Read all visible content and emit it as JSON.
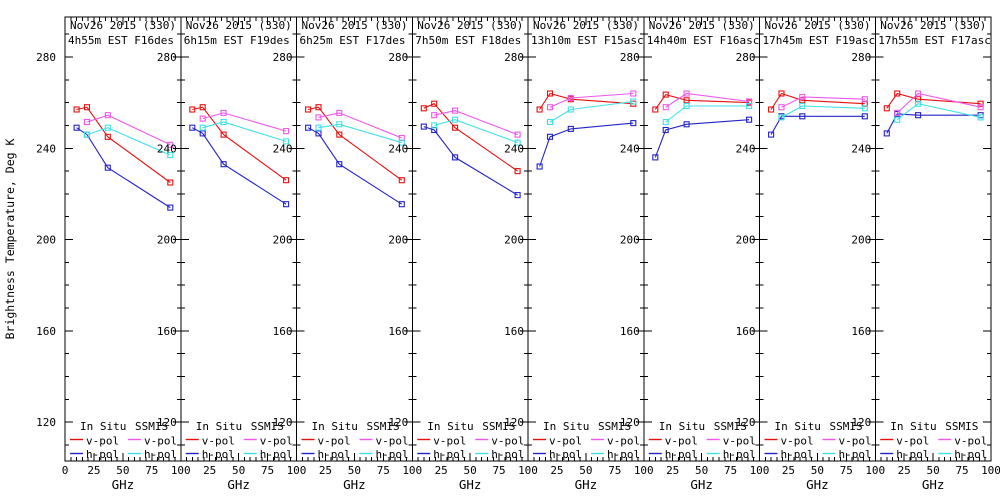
{
  "figure": {
    "y_axis_title": "Brightness Temperature, Deg K",
    "x_axis_title": "GHz",
    "y_ticks": [
      120,
      160,
      200,
      240,
      280
    ],
    "x_ticks": [
      0,
      25,
      50,
      75,
      100
    ],
    "y_minor_step": 10,
    "x_minor_step": 5,
    "xlim": [
      0,
      100
    ],
    "ylim_display": [
      103,
      297.5
    ],
    "grid": "off",
    "legend_position": "bottom-inside-each-panel",
    "colors": {
      "insitu_v": "#e80f0f",
      "insitu_h": "#2323c8",
      "ssmis_v": "#ee58ee",
      "ssmis_h": "#3fe0e8",
      "frame": "#000000",
      "background": "#ffffff"
    },
    "legend": {
      "groups": [
        {
          "title": "In Situ",
          "entries": [
            {
              "label": "v-pol",
              "key": "insitu_v"
            },
            {
              "label": "h-pol",
              "key": "insitu_h"
            }
          ]
        },
        {
          "title": "SSMIS",
          "entries": [
            {
              "label": "v-pol",
              "key": "ssmis_v"
            },
            {
              "label": "h-pol",
              "key": "ssmis_h"
            }
          ]
        }
      ]
    }
  },
  "chart_data": [
    {
      "type": "line",
      "title": [
        "Nov26 2015 (330)",
        "4h55m EST F16des"
      ],
      "xlabel": "GHz",
      "series": [
        {
          "name": "In Situ v-pol",
          "key": "insitu_v",
          "x": [
            10,
            19,
            37,
            91
          ],
          "y": [
            257,
            258,
            245,
            225
          ]
        },
        {
          "name": "In Situ h-pol",
          "key": "insitu_h",
          "x": [
            10,
            19,
            37,
            91
          ],
          "y": [
            249,
            246,
            231.5,
            214
          ]
        },
        {
          "name": "SSMIS v-pol",
          "key": "ssmis_v",
          "x": [
            19,
            37,
            91
          ],
          "y": [
            251.5,
            254.5,
            241.5
          ]
        },
        {
          "name": "SSMIS h-pol",
          "key": "ssmis_h",
          "x": [
            19,
            37,
            91
          ],
          "y": [
            246,
            249,
            237
          ]
        }
      ]
    },
    {
      "type": "line",
      "title": [
        "Nov26 2015 (330)",
        "6h15m EST F19des"
      ],
      "xlabel": "GHz",
      "series": [
        {
          "name": "In Situ v-pol",
          "key": "insitu_v",
          "x": [
            10,
            19,
            37,
            91
          ],
          "y": [
            257,
            258,
            246,
            226
          ]
        },
        {
          "name": "In Situ h-pol",
          "key": "insitu_h",
          "x": [
            10,
            19,
            37,
            91
          ],
          "y": [
            249,
            246.5,
            233,
            215.5
          ]
        },
        {
          "name": "SSMIS v-pol",
          "key": "ssmis_v",
          "x": [
            19,
            37,
            91
          ],
          "y": [
            253,
            255.5,
            247.5
          ]
        },
        {
          "name": "SSMIS h-pol",
          "key": "ssmis_h",
          "x": [
            19,
            37,
            91
          ],
          "y": [
            249,
            251.5,
            243
          ]
        }
      ]
    },
    {
      "type": "line",
      "title": [
        "Nov26 2015 (330)",
        "6h25m EST F17des"
      ],
      "xlabel": "GHz",
      "series": [
        {
          "name": "In Situ v-pol",
          "key": "insitu_v",
          "x": [
            10,
            19,
            37,
            91
          ],
          "y": [
            257,
            258,
            246,
            226
          ]
        },
        {
          "name": "In Situ h-pol",
          "key": "insitu_h",
          "x": [
            10,
            19,
            37,
            91
          ],
          "y": [
            249,
            246.5,
            233,
            215.5
          ]
        },
        {
          "name": "SSMIS v-pol",
          "key": "ssmis_v",
          "x": [
            19,
            37,
            91
          ],
          "y": [
            253.5,
            255.5,
            244.5
          ]
        },
        {
          "name": "SSMIS h-pol",
          "key": "ssmis_h",
          "x": [
            19,
            37,
            91
          ],
          "y": [
            249,
            250.5,
            242.5
          ]
        }
      ]
    },
    {
      "type": "line",
      "title": [
        "Nov26 2015 (330)",
        "7h50m EST F18des"
      ],
      "xlabel": "GHz",
      "series": [
        {
          "name": "In Situ v-pol",
          "key": "insitu_v",
          "x": [
            10,
            19,
            37,
            91
          ],
          "y": [
            257.5,
            259.5,
            249,
            230
          ]
        },
        {
          "name": "In Situ h-pol",
          "key": "insitu_h",
          "x": [
            10,
            19,
            37,
            91
          ],
          "y": [
            249.5,
            248,
            236,
            219.5
          ]
        },
        {
          "name": "SSMIS v-pol",
          "key": "ssmis_v",
          "x": [
            19,
            37,
            91
          ],
          "y": [
            254.5,
            256.5,
            246
          ]
        },
        {
          "name": "SSMIS h-pol",
          "key": "ssmis_h",
          "x": [
            19,
            37,
            91
          ],
          "y": [
            250,
            252.5,
            242.5
          ]
        }
      ]
    },
    {
      "type": "line",
      "title": [
        "Nov26 2015 (330)",
        "13h10m EST F15asc"
      ],
      "xlabel": "GHz",
      "series": [
        {
          "name": "In Situ v-pol",
          "key": "insitu_v",
          "x": [
            10,
            19,
            37,
            91
          ],
          "y": [
            257,
            264,
            261.5,
            259.5
          ]
        },
        {
          "name": "In Situ h-pol",
          "key": "insitu_h",
          "x": [
            10,
            19,
            37,
            91
          ],
          "y": [
            232,
            245,
            248.5,
            251
          ]
        },
        {
          "name": "SSMIS v-pol",
          "key": "ssmis_v",
          "x": [
            19,
            37,
            91
          ],
          "y": [
            258,
            262,
            264
          ]
        },
        {
          "name": "SSMIS h-pol",
          "key": "ssmis_h",
          "x": [
            19,
            37,
            91
          ],
          "y": [
            251.5,
            257,
            260.5
          ]
        }
      ]
    },
    {
      "type": "line",
      "title": [
        "Nov26 2015 (330)",
        "14h40m EST F16asc"
      ],
      "xlabel": "GHz",
      "series": [
        {
          "name": "In Situ v-pol",
          "key": "insitu_v",
          "x": [
            10,
            19,
            37,
            91
          ],
          "y": [
            257,
            263.5,
            261,
            260
          ]
        },
        {
          "name": "In Situ h-pol",
          "key": "insitu_h",
          "x": [
            10,
            19,
            37,
            91
          ],
          "y": [
            236,
            248,
            250.5,
            252.5
          ]
        },
        {
          "name": "SSMIS v-pol",
          "key": "ssmis_v",
          "x": [
            19,
            37,
            91
          ],
          "y": [
            258,
            264,
            260.5
          ]
        },
        {
          "name": "SSMIS h-pol",
          "key": "ssmis_h",
          "x": [
            19,
            37,
            91
          ],
          "y": [
            251.5,
            258.5,
            258.5
          ]
        }
      ]
    },
    {
      "type": "line",
      "title": [
        "Nov26 2015 (330)",
        "17h45m EST F19asc"
      ],
      "xlabel": "GHz",
      "series": [
        {
          "name": "In Situ v-pol",
          "key": "insitu_v",
          "x": [
            10,
            19,
            37,
            91
          ],
          "y": [
            257,
            264,
            261,
            259.5
          ]
        },
        {
          "name": "In Situ h-pol",
          "key": "insitu_h",
          "x": [
            10,
            19,
            37,
            91
          ],
          "y": [
            246,
            254,
            254,
            254
          ]
        },
        {
          "name": "SSMIS v-pol",
          "key": "ssmis_v",
          "x": [
            19,
            37,
            91
          ],
          "y": [
            258,
            262.5,
            261.5
          ]
        },
        {
          "name": "SSMIS h-pol",
          "key": "ssmis_h",
          "x": [
            19,
            37,
            91
          ],
          "y": [
            253.5,
            258.5,
            257.5
          ]
        }
      ]
    },
    {
      "type": "line",
      "title": [
        "Nov26 2015 (330)",
        "17h55m EST F17asc"
      ],
      "xlabel": "GHz",
      "series": [
        {
          "name": "In Situ v-pol",
          "key": "insitu_v",
          "x": [
            10,
            19,
            37,
            91
          ],
          "y": [
            257.5,
            264,
            261.5,
            259.5
          ]
        },
        {
          "name": "In Situ h-pol",
          "key": "insitu_h",
          "x": [
            10,
            19,
            37,
            91
          ],
          "y": [
            246.5,
            255,
            254.5,
            254.5
          ]
        },
        {
          "name": "SSMIS v-pol",
          "key": "ssmis_v",
          "x": [
            19,
            37,
            91
          ],
          "y": [
            255.5,
            264,
            258
          ]
        },
        {
          "name": "SSMIS h-pol",
          "key": "ssmis_h",
          "x": [
            19,
            37,
            91
          ],
          "y": [
            252.5,
            259.5,
            253.5
          ]
        }
      ]
    }
  ]
}
